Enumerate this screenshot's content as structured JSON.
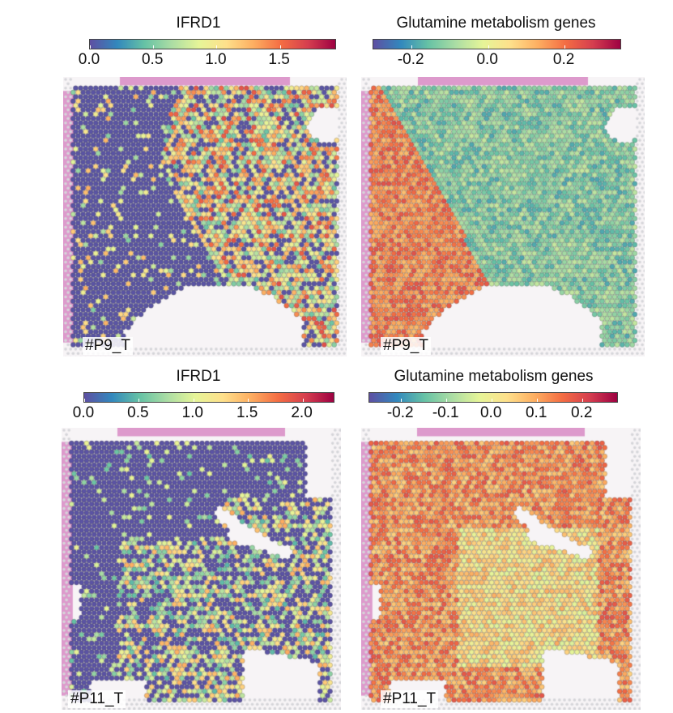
{
  "panels": [
    {
      "title": "IFRD1",
      "sample_label": "#P9_T",
      "colorbar": {
        "ticks": [
          "0.0",
          "0.5",
          "1.0",
          "1.5"
        ],
        "tick_values": [
          0.0,
          0.5,
          1.0,
          1.5
        ],
        "min": 0.0,
        "max": 1.95
      },
      "pattern": "ifrd1_p9"
    },
    {
      "title": "Glutamine metabolism genes",
      "sample_label": "#P9_T",
      "colorbar": {
        "ticks": [
          "-0.2",
          "0.0",
          "0.2"
        ],
        "tick_values": [
          -0.2,
          0.0,
          0.2
        ],
        "min": -0.3,
        "max": 0.35
      },
      "pattern": "glut_p9"
    },
    {
      "title": "IFRD1",
      "sample_label": "#P11_T",
      "colorbar": {
        "ticks": [
          "0.0",
          "0.5",
          "1.0",
          "1.5",
          "2.0"
        ],
        "tick_values": [
          0.0,
          0.5,
          1.0,
          1.5,
          2.0
        ],
        "min": 0.0,
        "max": 2.3
      },
      "pattern": "ifrd1_p11"
    },
    {
      "title": "Glutamine metabolism genes",
      "sample_label": "#P11_T",
      "colorbar": {
        "ticks": [
          "-0.2",
          "-0.1",
          "0.0",
          "0.1",
          "0.2"
        ],
        "tick_values": [
          -0.2,
          -0.1,
          0.0,
          0.1,
          0.2
        ],
        "min": -0.27,
        "max": 0.28
      },
      "pattern": "glut_p11"
    }
  ],
  "colormap": [
    "#5e4fa2",
    "#3288bd",
    "#66c2a5",
    "#abdda4",
    "#e6f598",
    "#fee08b",
    "#fdae61",
    "#f46d43",
    "#d53e4f",
    "#9e0142"
  ],
  "chart_data": [
    {
      "type": "heatmap",
      "title": "IFRD1",
      "sample": "#P9_T",
      "colorbar_range": [
        0.0,
        1.95
      ],
      "colorbar_ticks": [
        0.0,
        0.5,
        1.0,
        1.5
      ],
      "description": "left region mostly ~0 (purple), right region mixed 0.5–1.5 with sparse high spots"
    },
    {
      "type": "heatmap",
      "title": "Glutamine metabolism genes",
      "sample": "#P9_T",
      "colorbar_range": [
        -0.3,
        0.35
      ],
      "colorbar_ticks": [
        -0.2,
        0.0,
        0.2
      ],
      "description": "left diagonal region high (~0.1–0.3), right region low (~-0.1 to -0.2)"
    },
    {
      "type": "heatmap",
      "title": "IFRD1",
      "sample": "#P11_T",
      "colorbar_range": [
        0.0,
        2.3
      ],
      "colorbar_ticks": [
        0.0,
        0.5,
        1.0,
        1.5,
        2.0
      ],
      "description": "upper-left mostly ~0, lower-middle mixed 0.5–1.5"
    },
    {
      "type": "heatmap",
      "title": "Glutamine metabolism genes",
      "sample": "#P11_T",
      "colorbar_range": [
        -0.27,
        0.28
      ],
      "colorbar_ticks": [
        -0.2,
        -0.1,
        0.0,
        0.1,
        0.2
      ],
      "description": "mostly positive ~0.05–0.2, lower-middle near 0"
    }
  ]
}
